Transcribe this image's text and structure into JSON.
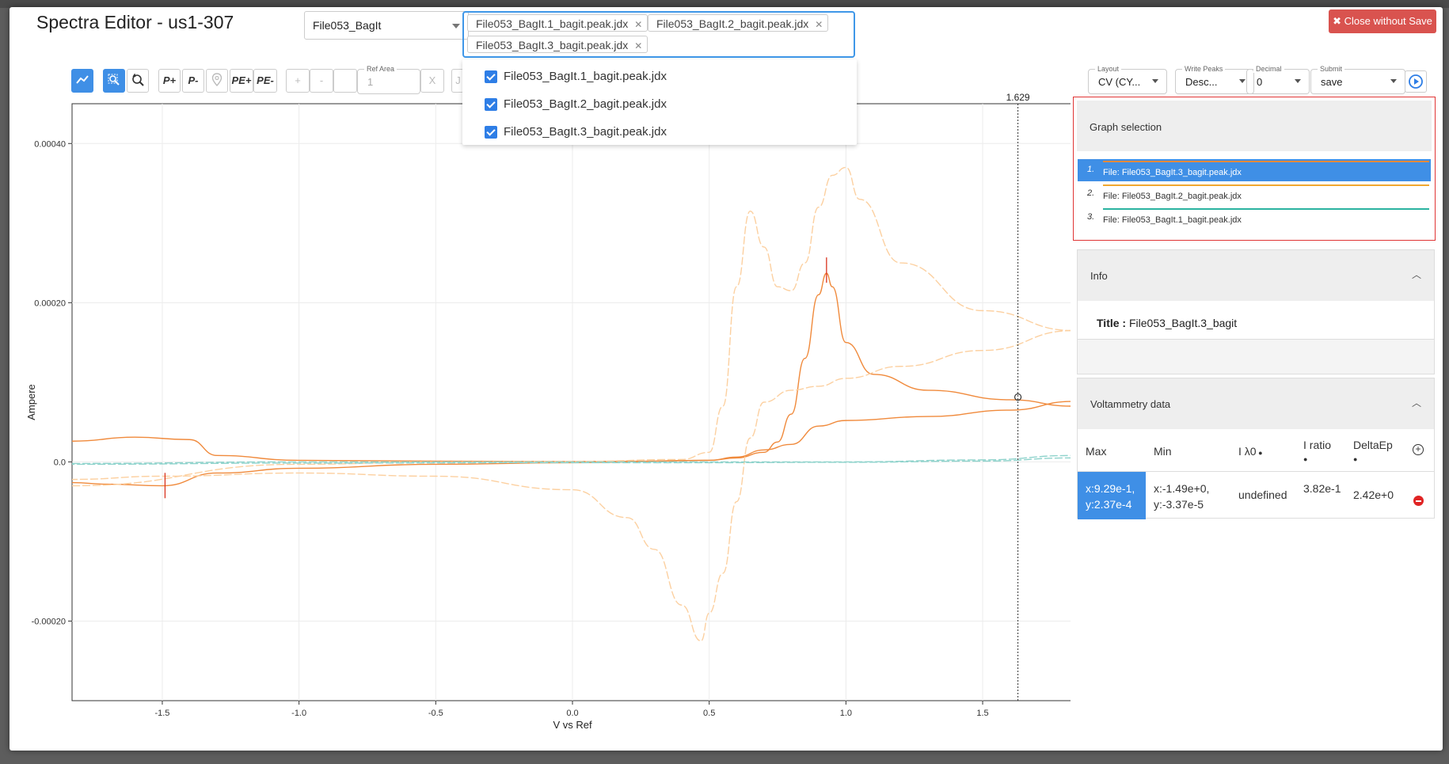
{
  "title": "Spectra Editor - us1-307",
  "file_select": {
    "value": "File053_BagIt"
  },
  "selected_files": [
    "File053_BagIt.1_bagit.peak.jdx",
    "File053_BagIt.2_bagit.peak.jdx",
    "File053_BagIt.3_bagit.peak.jdx"
  ],
  "dropdown_options": [
    "File053_BagIt.1_bagit.peak.jdx",
    "File053_BagIt.2_bagit.peak.jdx",
    "File053_BagIt.3_bagit.peak.jdx"
  ],
  "close_button": "✖ Close without Save",
  "toolbar": {
    "p_plus": "P+",
    "p_minus": "P-",
    "pe_plus": "PE+",
    "pe_minus": "PE-",
    "plus": "+",
    "minus": "-",
    "ref_area_label": "Ref Area",
    "ref_area_value": "1",
    "x_label": "X",
    "j_label": "J"
  },
  "controls": {
    "layout": {
      "label": "Layout",
      "value": "CV (CY..."
    },
    "write_peaks": {
      "label": "Write Peaks",
      "value": "Desc..."
    },
    "decimal": {
      "label": "Decimal",
      "value": "0"
    },
    "submit": {
      "label": "Submit",
      "value": "save"
    }
  },
  "graph_selection": {
    "title": "Graph selection",
    "items": [
      {
        "num": "1.",
        "label": "File: File053_BagIt.3_bagit.peak.jdx",
        "color": "#f08a3c",
        "selected": true
      },
      {
        "num": "2.",
        "label": "File: File053_BagIt.2_bagit.peak.jdx",
        "color": "#f0a830",
        "selected": false
      },
      {
        "num": "3.",
        "label": "File: File053_BagIt.1_bagit.peak.jdx",
        "color": "#2bb3a0",
        "selected": false
      }
    ]
  },
  "info": {
    "title": "Info",
    "title_label": "Title :",
    "title_value": "File053_BagIt.3_bagit"
  },
  "voltammetry": {
    "title": "Voltammetry data",
    "headers": [
      "Max",
      "Min",
      "I λ0",
      "I ratio",
      "DeltaEp"
    ],
    "row": {
      "max": "x:9.29e-1, y:2.37e-4",
      "min": "x:-1.49e+0, y:-3.37e-5",
      "i_lambda": "undefined",
      "i_ratio": "3.82e-1",
      "delta_ep": "2.42e+0"
    }
  },
  "chart_data": {
    "type": "line",
    "xlabel": "V vs Ref",
    "ylabel": "Ampere",
    "xlim": [
      -1.83,
      1.83
    ],
    "ylim": [
      -0.0003,
      0.00045
    ],
    "x_ticks": [
      "-1.5",
      "-1.0",
      "-0.5",
      "0.0",
      "0.5",
      "1.0",
      "1.5"
    ],
    "y_ticks": [
      "0.00040",
      "0.00020",
      "0.0",
      "-0.00020"
    ],
    "cursor_x": 1.629,
    "cursor_label": "1.629",
    "grid": true,
    "series": [
      {
        "color": "#f08a3c",
        "dashed": false,
        "x": [
          -1.83,
          -1.6,
          -1.4,
          -1.3,
          -1.0,
          -0.5,
          0.0,
          0.3,
          0.5,
          0.6,
          0.7,
          0.75,
          0.8,
          0.85,
          0.9,
          0.929,
          0.95,
          1.0,
          1.1,
          1.3,
          1.6,
          1.83
        ],
        "y": [
          2.6e-05,
          3.1e-05,
          2.8e-05,
          8e-06,
          2e-06,
          1e-06,
          5e-07,
          1e-06,
          2e-06,
          5e-06,
          1.2e-05,
          2.5e-05,
          6e-05,
          0.00013,
          0.00021,
          0.000237,
          0.00022,
          0.00015,
          0.00011,
          9e-05,
          7.8e-05,
          7e-05
        ]
      },
      {
        "color": "#f08a3c",
        "dashed": false,
        "x": [
          1.83,
          1.6,
          1.3,
          1.0,
          0.9,
          0.8,
          0.7,
          0.6,
          0.5,
          0.0,
          -0.5,
          -1.0,
          -1.3,
          -1.5,
          -1.7,
          -1.83
        ],
        "y": [
          7.6e-05,
          6.5e-05,
          5.7e-05,
          5.2e-05,
          4.5e-05,
          2.2e-05,
          1.5e-05,
          6e-06,
          2e-06,
          -1e-06,
          -3e-06,
          -8e-06,
          -1.4e-05,
          -3e-05,
          -2.8e-05,
          -2.6e-05
        ]
      },
      {
        "color": "#fcd0a0",
        "dashed": true,
        "x": [
          -1.83,
          -1.0,
          -0.5,
          0.0,
          0.4,
          0.5,
          0.55,
          0.6,
          0.65,
          0.7,
          0.75,
          0.8,
          0.85,
          0.9,
          0.95,
          1.0,
          1.05,
          1.2,
          1.5,
          1.83
        ],
        "y": [
          -3e-05,
          -3e-06,
          0.0,
          5e-07,
          3e-06,
          1.2e-05,
          7e-05,
          0.00022,
          0.000315,
          0.00027,
          0.00022,
          0.000215,
          0.00025,
          0.00032,
          0.00036,
          0.00037,
          0.00033,
          0.00025,
          0.00019,
          0.000165
        ]
      },
      {
        "color": "#fcd0a0",
        "dashed": true,
        "x": [
          1.83,
          1.5,
          1.2,
          1.0,
          0.9,
          0.8,
          0.7,
          0.65,
          0.6,
          0.55,
          0.5,
          0.47,
          0.4,
          0.3,
          0.2,
          0.0,
          -0.5,
          -1.0,
          -1.5,
          -1.83
        ],
        "y": [
          0.000165,
          0.00014,
          0.00012,
          0.000105,
          9.5e-05,
          9e-05,
          7.5e-05,
          3e-05,
          -5e-05,
          -0.00014,
          -0.00019,
          -0.000225,
          -0.00018,
          -0.00011,
          -7e-05,
          -3.5e-05,
          -1.8e-05,
          -1.4e-05,
          -1.8e-05,
          -2.2e-05
        ]
      },
      {
        "color": "#8fd3cc",
        "dashed": true,
        "x": [
          -1.83,
          -1.0,
          0.0,
          0.5,
          1.0,
          1.5,
          1.83
        ],
        "y": [
          -2e-06,
          0.0,
          0.0,
          0.0,
          0.0,
          2.5e-06,
          8e-06
        ]
      },
      {
        "color": "#8fd3cc",
        "dashed": true,
        "x": [
          1.83,
          1.5,
          1.0,
          0.5,
          0.0,
          -1.0,
          -1.83
        ],
        "y": [
          5e-06,
          1e-06,
          -5e-07,
          -1e-06,
          -1e-06,
          -1.5e-06,
          -3e-06
        ]
      }
    ],
    "peaks": [
      {
        "x": 0.929,
        "y": 0.000237
      },
      {
        "x": -1.49,
        "y": -3.37e-05
      }
    ]
  }
}
